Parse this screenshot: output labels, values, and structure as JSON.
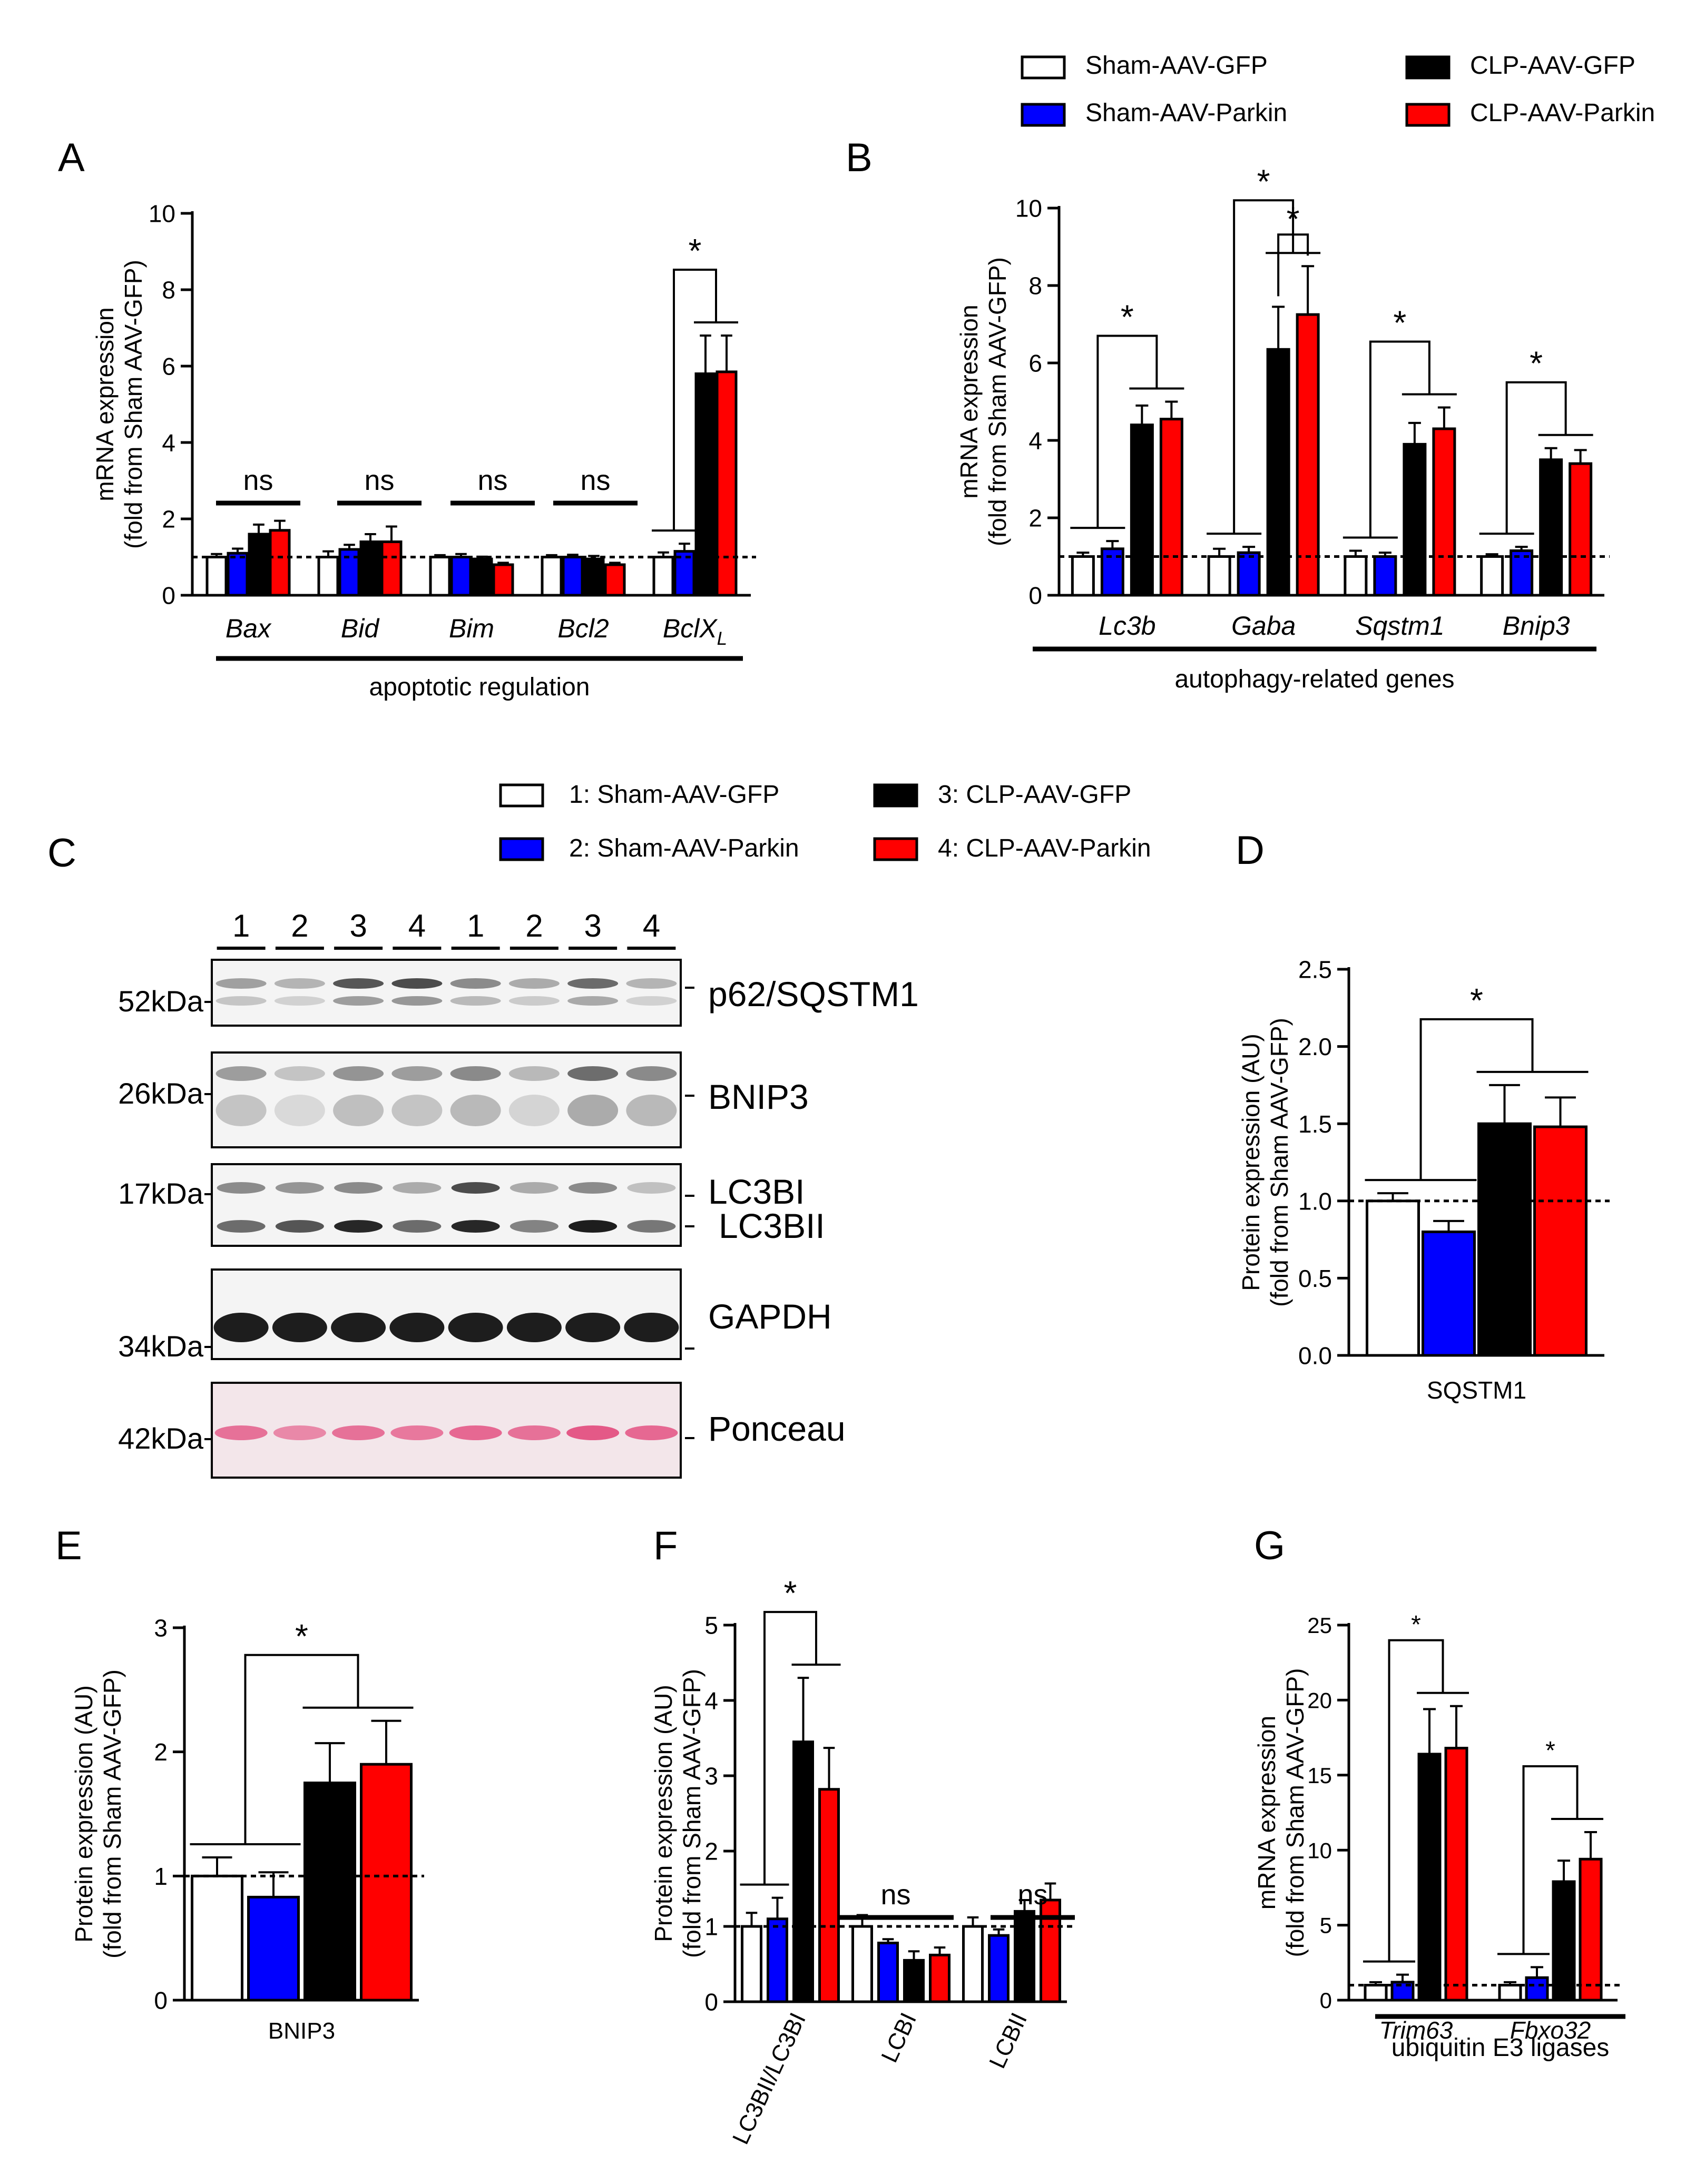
{
  "legend_top": [
    {
      "label": "Sham-AAV-GFP",
      "color": "#ffffff"
    },
    {
      "label": "Sham-AAV-Parkin",
      "color": "#0000ff"
    },
    {
      "label": "CLP-AAV-GFP",
      "color": "#000000"
    },
    {
      "label": "CLP-AAV-Parkin",
      "color": "#ff0000"
    }
  ],
  "legend_mid": [
    {
      "label": "1: Sham-AAV-GFP",
      "color": "#ffffff"
    },
    {
      "label": "2: Sham-AAV-Parkin",
      "color": "#0000ff"
    },
    {
      "label": "3: CLP-AAV-GFP",
      "color": "#000000"
    },
    {
      "label": "4: CLP-AAV-Parkin",
      "color": "#ff0000"
    }
  ],
  "blot": {
    "panel_label": "C",
    "lanes": [
      "1",
      "2",
      "3",
      "4",
      "1",
      "2",
      "3",
      "4"
    ],
    "strips": [
      {
        "target": "p62/SQSTM1",
        "marker": "52kDa"
      },
      {
        "target": "BNIP3",
        "marker": "26kDa"
      },
      {
        "target": "LC3BI",
        "target2": "LC3BII",
        "marker": "17kDa"
      },
      {
        "target": "GAPDH",
        "marker": "34kDa"
      },
      {
        "target": "Ponceau",
        "marker": "42kDa"
      }
    ]
  },
  "chart_data": [
    {
      "id": "A",
      "panel_label": "A",
      "type": "bar",
      "ylabel": [
        "mRNA expression",
        "(fold from Sham AAV-GFP)"
      ],
      "ylim": [
        0,
        10
      ],
      "yticks": [
        "0",
        "2",
        "4",
        "6",
        "8",
        "10"
      ],
      "categories": [
        "Bax",
        "Bid",
        "Bim",
        "Bcl2",
        "BclX"
      ],
      "category_subscripts": [
        "",
        "",
        "",
        "",
        "L"
      ],
      "reference_line": 1,
      "series": [
        {
          "name": "Sham-AAV-GFP",
          "color": "#ffffff",
          "values": [
            1.0,
            1.0,
            1.0,
            1.0,
            1.0
          ],
          "errors": [
            0.08,
            0.15,
            0.05,
            0.05,
            0.12
          ]
        },
        {
          "name": "Sham-AAV-Parkin",
          "color": "#0000ff",
          "values": [
            1.1,
            1.2,
            1.0,
            1.0,
            1.15
          ],
          "errors": [
            0.12,
            0.12,
            0.08,
            0.06,
            0.2
          ]
        },
        {
          "name": "CLP-AAV-GFP",
          "color": "#000000",
          "values": [
            1.6,
            1.4,
            0.95,
            0.95,
            5.8
          ],
          "errors": [
            0.25,
            0.2,
            0.06,
            0.08,
            1.0
          ]
        },
        {
          "name": "CLP-AAV-Parkin",
          "color": "#ff0000",
          "values": [
            1.7,
            1.4,
            0.8,
            0.8,
            5.85
          ],
          "errors": [
            0.25,
            0.4,
            0.05,
            0.05,
            0.95
          ]
        }
      ],
      "annotations": [
        "ns",
        "ns",
        "ns",
        "ns",
        "*"
      ],
      "group_label": "apoptotic regulation"
    },
    {
      "id": "B",
      "panel_label": "B",
      "type": "bar",
      "ylabel": [
        "mRNA expression",
        "(fold from Sham AAV-GFP)"
      ],
      "ylim": [
        0,
        10
      ],
      "yticks": [
        "0",
        "2",
        "4",
        "6",
        "8",
        "10"
      ],
      "categories": [
        "Lc3b",
        "Gaba",
        "Sqstm1",
        "Bnip3"
      ],
      "reference_line": 1,
      "series": [
        {
          "name": "Sham-AAV-GFP",
          "color": "#ffffff",
          "values": [
            1.0,
            1.0,
            1.0,
            1.0
          ],
          "errors": [
            0.1,
            0.2,
            0.15,
            0.06
          ]
        },
        {
          "name": "Sham-AAV-Parkin",
          "color": "#0000ff",
          "values": [
            1.2,
            1.1,
            1.0,
            1.15
          ],
          "errors": [
            0.2,
            0.15,
            0.1,
            0.1
          ]
        },
        {
          "name": "CLP-AAV-GFP",
          "color": "#000000",
          "values": [
            4.4,
            6.35,
            3.9,
            3.5
          ],
          "errors": [
            0.5,
            1.1,
            0.55,
            0.3
          ]
        },
        {
          "name": "CLP-AAV-Parkin",
          "color": "#ff0000",
          "values": [
            4.55,
            7.25,
            4.3,
            3.4
          ],
          "errors": [
            0.45,
            1.25,
            0.55,
            0.35
          ]
        }
      ],
      "annotations": [
        "*",
        "*",
        "*",
        "*"
      ],
      "extra_annotation": "*",
      "group_label": "autophagy-related genes"
    },
    {
      "id": "D",
      "panel_label": "D",
      "type": "bar",
      "ylabel": [
        "Protein expression (AU)",
        "(fold from Sham AAV-GFP)"
      ],
      "ylim": [
        0,
        2.5
      ],
      "yticks": [
        "0.0",
        "0.5",
        "1.0",
        "1.5",
        "2.0",
        "2.5"
      ],
      "categories": [
        "SQSTM1"
      ],
      "reference_line": 1,
      "series": [
        {
          "name": "Sham-AAV-GFP",
          "color": "#ffffff",
          "values": [
            1.0
          ],
          "errors": [
            0.05
          ]
        },
        {
          "name": "Sham-AAV-Parkin",
          "color": "#0000ff",
          "values": [
            0.8
          ],
          "errors": [
            0.07
          ]
        },
        {
          "name": "CLP-AAV-GFP",
          "color": "#000000",
          "values": [
            1.5
          ],
          "errors": [
            0.25
          ]
        },
        {
          "name": "CLP-AAV-Parkin",
          "color": "#ff0000",
          "values": [
            1.48
          ],
          "errors": [
            0.19
          ]
        }
      ],
      "annotations": [
        "*"
      ]
    },
    {
      "id": "E",
      "panel_label": "E",
      "type": "bar",
      "ylabel": [
        "Protein expression (AU)",
        "(fold from Sham AAV-GFP)"
      ],
      "ylim": [
        0,
        3
      ],
      "yticks": [
        "0",
        "1",
        "2",
        "3"
      ],
      "categories": [
        "BNIP3"
      ],
      "reference_line": 1,
      "series": [
        {
          "name": "Sham-AAV-GFP",
          "color": "#ffffff",
          "values": [
            1.0
          ],
          "errors": [
            0.15
          ]
        },
        {
          "name": "Sham-AAV-Parkin",
          "color": "#0000ff",
          "values": [
            0.83
          ],
          "errors": [
            0.2
          ]
        },
        {
          "name": "CLP-AAV-GFP",
          "color": "#000000",
          "values": [
            1.75
          ],
          "errors": [
            0.32
          ]
        },
        {
          "name": "CLP-AAV-Parkin",
          "color": "#ff0000",
          "values": [
            1.9
          ],
          "errors": [
            0.35
          ]
        }
      ],
      "annotations": [
        "*"
      ]
    },
    {
      "id": "F",
      "panel_label": "F",
      "type": "bar",
      "ylabel": [
        "Protein expression (AU)",
        "(fold from Sham AAV-GFP)"
      ],
      "ylim": [
        0,
        5
      ],
      "yticks": [
        "0",
        "1",
        "2",
        "3",
        "4",
        "5"
      ],
      "categories": [
        "LC3BII/LC3BI",
        "LCBI",
        "LCBII"
      ],
      "reference_line": 1,
      "series": [
        {
          "name": "Sham-AAV-GFP",
          "color": "#ffffff",
          "values": [
            1.0,
            1.0,
            1.0
          ],
          "errors": [
            0.18,
            0.15,
            0.12
          ]
        },
        {
          "name": "Sham-AAV-Parkin",
          "color": "#0000ff",
          "values": [
            1.1,
            0.78,
            0.88
          ],
          "errors": [
            0.28,
            0.05,
            0.08
          ]
        },
        {
          "name": "CLP-AAV-GFP",
          "color": "#000000",
          "values": [
            3.45,
            0.55,
            1.2
          ],
          "errors": [
            0.85,
            0.12,
            0.15
          ]
        },
        {
          "name": "CLP-AAV-Parkin",
          "color": "#ff0000",
          "values": [
            2.82,
            0.62,
            1.35
          ],
          "errors": [
            0.55,
            0.1,
            0.22
          ]
        }
      ],
      "annotations": [
        "*",
        "ns",
        "ns"
      ]
    },
    {
      "id": "G",
      "panel_label": "G",
      "type": "bar",
      "ylabel": [
        "mRNA expression",
        "(fold from Sham AAV-GFP)"
      ],
      "ylim": [
        0,
        25
      ],
      "yticks": [
        "0",
        "5",
        "10",
        "15",
        "20",
        "25"
      ],
      "categories": [
        "Trim63",
        "Fbxo32"
      ],
      "reference_line": 1,
      "series": [
        {
          "name": "Sham-AAV-GFP",
          "color": "#ffffff",
          "values": [
            1.0,
            1.0
          ],
          "errors": [
            0.2,
            0.2
          ]
        },
        {
          "name": "Sham-AAV-Parkin",
          "color": "#0000ff",
          "values": [
            1.2,
            1.5
          ],
          "errors": [
            0.5,
            0.7
          ]
        },
        {
          "name": "CLP-AAV-GFP",
          "color": "#000000",
          "values": [
            16.4,
            7.9
          ],
          "errors": [
            3.0,
            1.4
          ]
        },
        {
          "name": "CLP-AAV-Parkin",
          "color": "#ff0000",
          "values": [
            16.8,
            9.4
          ],
          "errors": [
            2.8,
            1.8
          ]
        }
      ],
      "annotations": [
        "*",
        "*"
      ],
      "group_label": "ubiquitin E3 ligases"
    }
  ]
}
